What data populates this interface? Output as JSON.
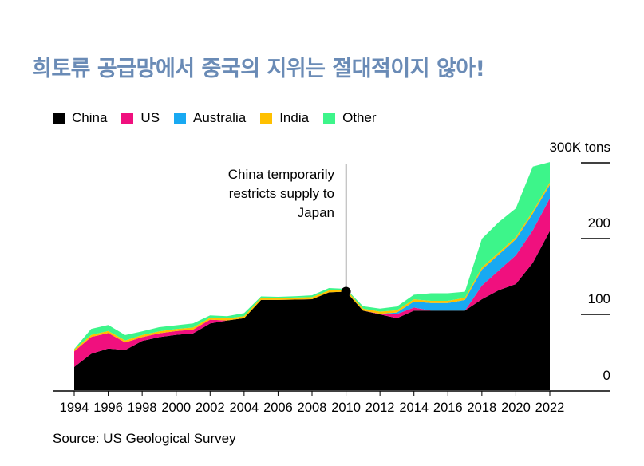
{
  "title": "희토류 공급망에서 중국의 지위는 절대적이지 않아!",
  "source": "Source: US Geological Survey",
  "annotation": [
    "China temporarily",
    "restricts supply to",
    "Japan"
  ],
  "colors": {
    "China": "#000000",
    "US": "#f0107e",
    "Australia": "#18a9f2",
    "India": "#ffc000",
    "Other": "#3df58a"
  },
  "chart_data": {
    "type": "area",
    "stacked": true,
    "title": "희토류 공급망에서 중국의 지위는 절대적이지 않아!",
    "xlabel": "",
    "ylabel": "",
    "x": [
      1994,
      1995,
      1996,
      1997,
      1998,
      1999,
      2000,
      2001,
      2002,
      2003,
      2004,
      2005,
      2006,
      2007,
      2008,
      2009,
      2010,
      2011,
      2012,
      2013,
      2014,
      2015,
      2016,
      2017,
      2018,
      2019,
      2020,
      2021,
      2022
    ],
    "xticks": [
      "1994",
      "1996",
      "1998",
      "2000",
      "2002",
      "2004",
      "2006",
      "2008",
      "2010",
      "2012",
      "2014",
      "2016",
      "2018",
      "2020",
      "2022"
    ],
    "yticks": [
      {
        "value": 0,
        "label": "0"
      },
      {
        "value": 100000,
        "label": "100"
      },
      {
        "value": 200000,
        "label": "200"
      },
      {
        "value": 300000,
        "label": "300K tons"
      }
    ],
    "ylim": [
      0,
      300000
    ],
    "series": [
      {
        "name": "China",
        "values": [
          30600,
          48000,
          55000,
          53000,
          65000,
          70000,
          73000,
          75000,
          88000,
          92000,
          95000,
          119000,
          119000,
          119500,
          120000,
          129000,
          130000,
          105000,
          100000,
          95000,
          105000,
          105000,
          105000,
          105000,
          120000,
          132000,
          140000,
          168000,
          210000
        ]
      },
      {
        "name": "US",
        "values": [
          20700,
          22200,
          20400,
          10000,
          5000,
          5000,
          5000,
          5000,
          5000,
          0,
          0,
          0,
          0,
          0,
          0,
          0,
          0,
          0,
          800,
          5500,
          4000,
          0,
          0,
          0,
          18000,
          26000,
          38000,
          43000,
          43000
        ]
      },
      {
        "name": "Australia",
        "values": [
          0,
          0,
          0,
          0,
          0,
          0,
          0,
          0,
          0,
          0,
          0,
          0,
          0,
          0,
          0,
          0,
          0,
          0,
          0,
          2000,
          8000,
          10000,
          10000,
          14000,
          21000,
          21000,
          21000,
          22000,
          18000
        ]
      },
      {
        "name": "India",
        "values": [
          2500,
          2700,
          2700,
          2700,
          2700,
          2700,
          2700,
          2700,
          2700,
          2700,
          2700,
          2700,
          2700,
          2700,
          2700,
          2700,
          2700,
          2700,
          2900,
          2900,
          2900,
          2900,
          2900,
          2900,
          2900,
          2900,
          2900,
          2900,
          2900
        ]
      },
      {
        "name": "Other",
        "values": [
          500,
          8000,
          8000,
          7000,
          5000,
          5500,
          5000,
          5500,
          3000,
          3000,
          4000,
          2000,
          1500,
          1800,
          2500,
          3000,
          1000,
          3000,
          4000,
          5000,
          6000,
          10000,
          10000,
          8000,
          38000,
          40000,
          38000,
          59000,
          27000
        ]
      }
    ],
    "annotations": [
      {
        "x": 2010,
        "y": 130000,
        "text": "China temporarily restricts supply to Japan"
      }
    ],
    "legend_position": "top-left",
    "grid": false
  }
}
